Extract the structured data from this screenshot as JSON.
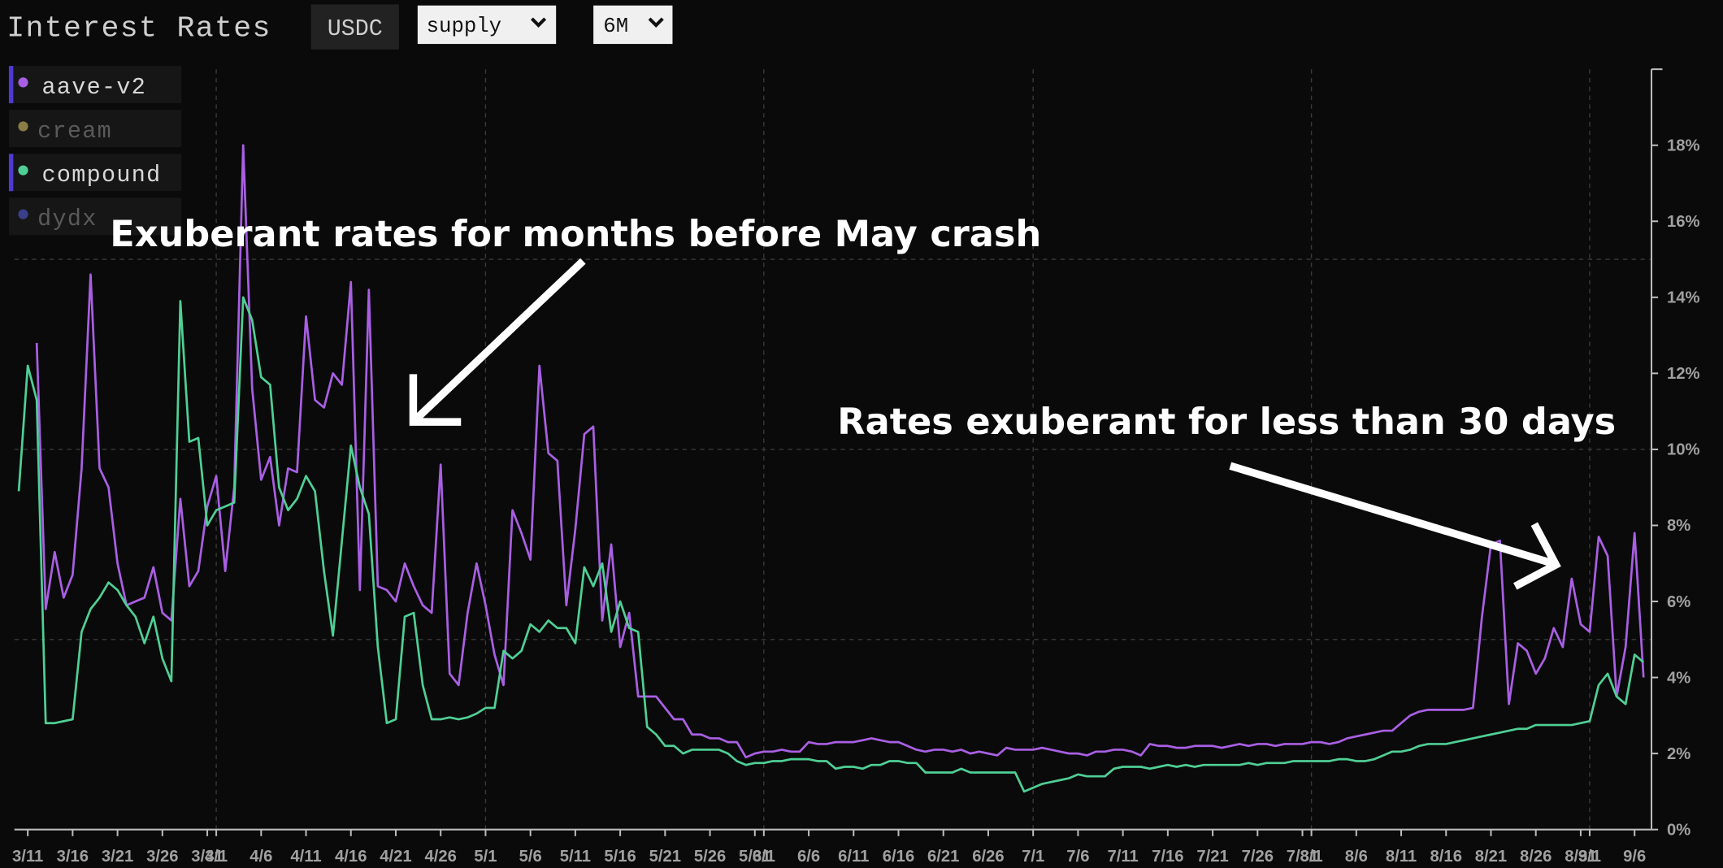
{
  "header": {
    "title": "Interest Rates",
    "asset": "USDC",
    "side": "supply",
    "range": "6M"
  },
  "chart_data": {
    "type": "line",
    "annotations": [
      "Exuberant rates for months before May crash",
      "Rates exuberant for less than 30 days"
    ],
    "categories": [
      null,
      "3/11",
      null,
      null,
      null,
      null,
      "3/16",
      null,
      null,
      null,
      null,
      "3/21",
      null,
      null,
      null,
      null,
      "3/26",
      null,
      null,
      null,
      null,
      "3/31",
      "4/1",
      null,
      null,
      null,
      null,
      "4/6",
      null,
      null,
      null,
      null,
      "4/11",
      null,
      null,
      null,
      null,
      "4/16",
      null,
      null,
      null,
      null,
      "4/21",
      null,
      null,
      null,
      null,
      "4/26",
      null,
      null,
      null,
      null,
      "5/1",
      null,
      null,
      null,
      null,
      "5/6",
      null,
      null,
      null,
      null,
      "5/11",
      null,
      null,
      null,
      null,
      "5/16",
      null,
      null,
      null,
      null,
      "5/21",
      null,
      null,
      null,
      null,
      "5/26",
      null,
      null,
      null,
      null,
      "5/31",
      "6/1",
      null,
      null,
      null,
      null,
      "6/6",
      null,
      null,
      null,
      null,
      "6/11",
      null,
      null,
      null,
      null,
      "6/16",
      null,
      null,
      null,
      null,
      "6/21",
      null,
      null,
      null,
      null,
      "6/26",
      null,
      null,
      null,
      null,
      "7/1",
      null,
      null,
      null,
      null,
      "7/6",
      null,
      null,
      null,
      null,
      "7/11",
      null,
      null,
      null,
      null,
      "7/16",
      null,
      null,
      null,
      null,
      "7/21",
      null,
      null,
      null,
      null,
      "7/26",
      null,
      null,
      null,
      null,
      "7/31",
      "8/1",
      null,
      null,
      null,
      null,
      "8/6",
      null,
      null,
      null,
      null,
      "8/11",
      null,
      null,
      null,
      null,
      "8/16",
      null,
      null,
      null,
      null,
      "8/21",
      null,
      null,
      null,
      null,
      "8/26",
      null,
      null,
      null,
      null,
      "8/31",
      "9/1",
      null,
      null,
      null,
      null,
      "9/6",
      null
    ],
    "series": [
      {
        "name": "aave-v2",
        "color": "#a95fe3",
        "visible": true,
        "values": [
          null,
          null,
          12.8,
          5.8,
          7.3,
          6.1,
          6.7,
          9.5,
          14.6,
          9.5,
          9.0,
          7.0,
          5.9,
          6.0,
          6.1,
          6.9,
          5.7,
          5.5,
          8.7,
          6.4,
          6.8,
          8.5,
          9.3,
          6.8,
          9.0,
          18.0,
          11.6,
          9.2,
          9.8,
          8.0,
          9.5,
          9.4,
          13.5,
          11.3,
          11.1,
          12.0,
          11.7,
          14.4,
          6.3,
          14.2,
          6.4,
          6.3,
          6.0,
          7.0,
          6.4,
          5.9,
          5.7,
          9.6,
          4.1,
          3.8,
          5.7,
          7.0,
          5.9,
          4.6,
          3.8,
          8.4,
          7.8,
          7.1,
          12.2,
          9.9,
          9.7,
          5.9,
          7.9,
          10.4,
          10.6,
          5.5,
          7.5,
          4.8,
          5.7,
          3.5,
          3.5,
          3.5,
          3.2,
          2.9,
          2.9,
          2.5,
          2.5,
          2.4,
          2.4,
          2.3,
          2.3,
          1.9,
          2.0,
          2.05,
          2.05,
          2.1,
          2.05,
          2.05,
          2.3,
          2.25,
          2.25,
          2.3,
          2.3,
          2.3,
          2.35,
          2.4,
          2.35,
          2.3,
          2.3,
          2.2,
          2.1,
          2.05,
          2.1,
          2.1,
          2.05,
          2.1,
          2.0,
          2.05,
          2.0,
          1.95,
          2.15,
          2.1,
          2.1,
          2.1,
          2.15,
          2.1,
          2.05,
          2.0,
          2.0,
          1.95,
          2.05,
          2.05,
          2.1,
          2.1,
          2.05,
          1.95,
          2.25,
          2.2,
          2.2,
          2.15,
          2.15,
          2.2,
          2.2,
          2.2,
          2.15,
          2.2,
          2.25,
          2.2,
          2.25,
          2.25,
          2.2,
          2.25,
          2.25,
          2.25,
          2.3,
          2.3,
          2.25,
          2.3,
          2.4,
          2.45,
          2.5,
          2.55,
          2.6,
          2.6,
          2.8,
          3.0,
          3.1,
          3.15,
          3.15,
          3.15,
          3.15,
          3.15,
          3.2,
          5.6,
          7.5,
          7.6,
          3.3,
          4.9,
          4.7,
          4.1,
          4.5,
          5.3,
          4.8,
          6.6,
          5.4,
          5.2,
          7.7,
          7.2,
          3.5,
          4.8,
          7.8,
          4.0
        ]
      },
      {
        "name": "cream",
        "color": "#8a7d45",
        "visible": false
      },
      {
        "name": "compound",
        "color": "#4fcf95",
        "visible": true,
        "values": [
          8.9,
          12.2,
          11.3,
          2.8,
          2.8,
          2.85,
          2.9,
          5.2,
          5.8,
          6.1,
          6.5,
          6.3,
          5.9,
          5.6,
          4.9,
          5.6,
          4.5,
          3.9,
          13.9,
          10.2,
          10.3,
          8.0,
          8.4,
          8.5,
          8.6,
          14.0,
          13.4,
          11.9,
          11.7,
          9.0,
          8.4,
          8.7,
          9.3,
          8.9,
          6.8,
          5.1,
          7.6,
          10.1,
          9.0,
          8.3,
          4.8,
          2.8,
          2.9,
          5.6,
          5.7,
          3.8,
          2.9,
          2.9,
          2.95,
          2.9,
          2.95,
          3.05,
          3.2,
          3.2,
          4.7,
          4.5,
          4.7,
          5.4,
          5.2,
          5.5,
          5.3,
          5.3,
          4.9,
          6.9,
          6.4,
          7.0,
          5.2,
          6.0,
          5.3,
          5.2,
          2.7,
          2.5,
          2.2,
          2.2,
          2.0,
          2.1,
          2.1,
          2.1,
          2.1,
          2.0,
          1.8,
          1.7,
          1.75,
          1.75,
          1.8,
          1.8,
          1.85,
          1.85,
          1.85,
          1.8,
          1.8,
          1.6,
          1.65,
          1.65,
          1.6,
          1.7,
          1.7,
          1.8,
          1.8,
          1.75,
          1.75,
          1.5,
          1.5,
          1.5,
          1.5,
          1.6,
          1.5,
          1.5,
          1.5,
          1.5,
          1.5,
          1.5,
          1.0,
          1.1,
          1.2,
          1.25,
          1.3,
          1.35,
          1.45,
          1.4,
          1.4,
          1.4,
          1.6,
          1.65,
          1.65,
          1.65,
          1.6,
          1.65,
          1.7,
          1.65,
          1.7,
          1.65,
          1.7,
          1.7,
          1.7,
          1.7,
          1.7,
          1.75,
          1.7,
          1.75,
          1.75,
          1.75,
          1.8,
          1.8,
          1.8,
          1.8,
          1.8,
          1.85,
          1.85,
          1.8,
          1.8,
          1.85,
          1.95,
          2.05,
          2.05,
          2.1,
          2.2,
          2.25,
          2.25,
          2.25,
          2.3,
          2.35,
          2.4,
          2.45,
          2.5,
          2.55,
          2.6,
          2.65,
          2.65,
          2.75,
          2.75,
          2.75,
          2.75,
          2.75,
          2.8,
          2.85,
          3.8,
          4.1,
          3.5,
          3.3,
          4.6,
          4.4
        ]
      },
      {
        "name": "dydx",
        "color": "#3a3f8a",
        "visible": false
      }
    ],
    "ylim": [
      0,
      20
    ],
    "yticks": [
      {
        "value": 0,
        "label": "0%"
      },
      {
        "value": 2,
        "label": "2%"
      },
      {
        "value": 4,
        "label": "4%"
      },
      {
        "value": 6,
        "label": "6%"
      },
      {
        "value": 8,
        "label": "8%"
      },
      {
        "value": 10,
        "label": "10%"
      },
      {
        "value": 12,
        "label": "12%"
      },
      {
        "value": 14,
        "label": "14%"
      },
      {
        "value": 16,
        "label": "16%"
      },
      {
        "value": 18,
        "label": "18%"
      }
    ],
    "ygrid": [
      5,
      10,
      15
    ],
    "grid": true
  }
}
